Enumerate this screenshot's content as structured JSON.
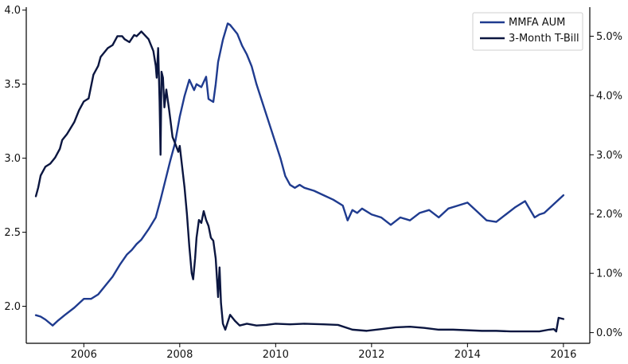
{
  "chart_data": {
    "type": "line",
    "title": "",
    "xlabel": "",
    "ylabel_left": "",
    "ylabel_right": "",
    "legend_position": "top-right",
    "grid": false,
    "x_ticks": [
      "2006",
      "2008",
      "2010",
      "2012",
      "2014",
      "2016"
    ],
    "y_left_ticks": [
      "2.0",
      "2.5",
      "3.0",
      "3.5",
      "4.0"
    ],
    "y_right_ticks": [
      "0.0%",
      "1.0%",
      "2.0%",
      "3.0%",
      "4.0%",
      "5.0%"
    ],
    "xlim": [
      2004.8,
      2016.55
    ],
    "ylim_left": [
      1.75,
      4.02
    ],
    "ylim_right": [
      -0.18,
      5.49
    ],
    "series": [
      {
        "name": "MMFA AUM",
        "axis": "left",
        "color": "#1f3b8f",
        "x": [
          2005.0,
          2005.1,
          2005.2,
          2005.35,
          2005.45,
          2005.6,
          2005.8,
          2006.0,
          2006.15,
          2006.3,
          2006.45,
          2006.6,
          2006.75,
          2006.9,
          2007.0,
          2007.1,
          2007.2,
          2007.35,
          2007.5,
          2007.6,
          2007.7,
          2007.8,
          2007.9,
          2008.0,
          2008.1,
          2008.2,
          2008.3,
          2008.35,
          2008.45,
          2008.55,
          2008.6,
          2008.7,
          2008.75,
          2008.8,
          2008.9,
          2009.0,
          2009.05,
          2009.1,
          2009.2,
          2009.3,
          2009.4,
          2009.5,
          2009.6,
          2009.7,
          2009.8,
          2009.9,
          2010.0,
          2010.1,
          2010.2,
          2010.3,
          2010.4,
          2010.5,
          2010.6,
          2010.8,
          2011.0,
          2011.2,
          2011.4,
          2011.5,
          2011.6,
          2011.7,
          2011.8,
          2012.0,
          2012.2,
          2012.4,
          2012.6,
          2012.8,
          2013.0,
          2013.2,
          2013.4,
          2013.6,
          2013.8,
          2014.0,
          2014.2,
          2014.4,
          2014.6,
          2014.8,
          2015.0,
          2015.2,
          2015.4,
          2015.5,
          2015.6,
          2015.8,
          2016.0
        ],
        "values": [
          1.94,
          1.93,
          1.91,
          1.87,
          1.9,
          1.94,
          1.99,
          2.05,
          2.05,
          2.08,
          2.14,
          2.2,
          2.28,
          2.35,
          2.38,
          2.42,
          2.45,
          2.52,
          2.6,
          2.72,
          2.85,
          2.98,
          3.1,
          3.28,
          3.42,
          3.53,
          3.46,
          3.5,
          3.48,
          3.55,
          3.4,
          3.38,
          3.5,
          3.65,
          3.8,
          3.91,
          3.9,
          3.88,
          3.84,
          3.76,
          3.7,
          3.62,
          3.5,
          3.4,
          3.3,
          3.2,
          3.1,
          3.0,
          2.88,
          2.82,
          2.8,
          2.82,
          2.8,
          2.78,
          2.75,
          2.72,
          2.68,
          2.58,
          2.65,
          2.63,
          2.66,
          2.62,
          2.6,
          2.55,
          2.6,
          2.58,
          2.63,
          2.65,
          2.6,
          2.66,
          2.68,
          2.7,
          2.64,
          2.58,
          2.57,
          2.62,
          2.67,
          2.71,
          2.6,
          2.62,
          2.63,
          2.69,
          2.75
        ]
      },
      {
        "name": "3-Month T-Bill",
        "axis": "right",
        "color": "#0b1640",
        "x": [
          2005.0,
          2005.05,
          2005.1,
          2005.2,
          2005.3,
          2005.4,
          2005.5,
          2005.55,
          2005.65,
          2005.8,
          2005.9,
          2006.0,
          2006.1,
          2006.2,
          2006.3,
          2006.35,
          2006.5,
          2006.6,
          2006.7,
          2006.8,
          2006.85,
          2006.95,
          2007.05,
          2007.1,
          2007.2,
          2007.35,
          2007.45,
          2007.5,
          2007.52,
          2007.55,
          2007.58,
          2007.6,
          2007.62,
          2007.65,
          2007.68,
          2007.72,
          2007.78,
          2007.85,
          2007.9,
          2007.97,
          2008.0,
          2008.05,
          2008.1,
          2008.15,
          2008.2,
          2008.25,
          2008.28,
          2008.32,
          2008.35,
          2008.4,
          2008.45,
          2008.5,
          2008.55,
          2008.6,
          2008.65,
          2008.7,
          2008.75,
          2008.8,
          2008.83,
          2008.86,
          2008.9,
          2008.95,
          2009.05,
          2009.15,
          2009.25,
          2009.4,
          2009.6,
          2009.8,
          2010.0,
          2010.3,
          2010.6,
          2011.0,
          2011.3,
          2011.6,
          2011.9,
          2012.2,
          2012.5,
          2012.8,
          2013.1,
          2013.4,
          2013.7,
          2014.0,
          2014.3,
          2014.6,
          2014.9,
          2015.2,
          2015.5,
          2015.7,
          2015.8,
          2015.85,
          2015.9,
          2016.0
        ],
        "values": [
          2.3,
          2.45,
          2.65,
          2.8,
          2.85,
          2.95,
          3.1,
          3.25,
          3.35,
          3.55,
          3.75,
          3.9,
          3.95,
          4.35,
          4.5,
          4.65,
          4.8,
          4.85,
          5.0,
          5.0,
          4.95,
          4.9,
          5.02,
          5.0,
          5.08,
          4.95,
          4.75,
          4.5,
          4.3,
          4.8,
          3.9,
          3.0,
          4.4,
          4.3,
          3.8,
          4.1,
          3.75,
          3.3,
          3.2,
          3.05,
          3.15,
          2.8,
          2.45,
          2.0,
          1.45,
          1.0,
          0.9,
          1.25,
          1.6,
          1.9,
          1.85,
          2.05,
          1.9,
          1.8,
          1.6,
          1.55,
          1.25,
          0.6,
          1.1,
          0.5,
          0.15,
          0.05,
          0.3,
          0.2,
          0.12,
          0.15,
          0.12,
          0.13,
          0.15,
          0.14,
          0.15,
          0.14,
          0.13,
          0.05,
          0.03,
          0.06,
          0.09,
          0.1,
          0.08,
          0.05,
          0.05,
          0.04,
          0.03,
          0.03,
          0.02,
          0.02,
          0.02,
          0.05,
          0.06,
          0.02,
          0.25,
          0.23
        ]
      }
    ]
  }
}
